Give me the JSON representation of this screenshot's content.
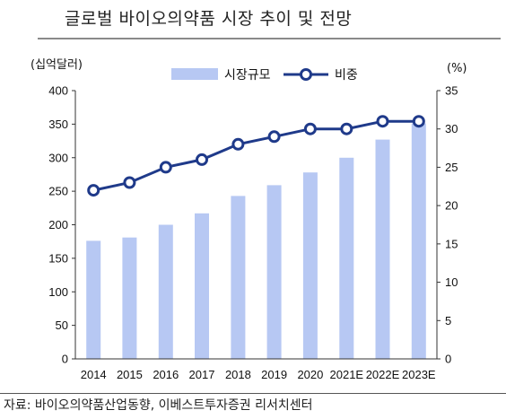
{
  "header": {
    "title": "글로벌 바이오의약품 시장 추이 및 전망"
  },
  "footer": {
    "source": "자료: 바이오의약품산업동향, 이베스트투자증권 리서치센터"
  },
  "colors": {
    "bar": "#b7c8f3",
    "line": "#1f3a8a",
    "marker_fill": "#ffffff"
  },
  "chart_data": {
    "type": "bar",
    "title": "글로벌 바이오의약품 시장 추이 및 전망",
    "categories": [
      "2014",
      "2015",
      "2016",
      "2017",
      "2018",
      "2019",
      "2020",
      "2021E",
      "2022E",
      "2023E"
    ],
    "series": [
      {
        "name": "시장규모",
        "type": "bar",
        "axis": "left",
        "values": [
          176,
          181,
          200,
          217,
          243,
          259,
          278,
          300,
          327,
          351
        ]
      },
      {
        "name": "비중",
        "type": "line",
        "axis": "right",
        "values": [
          22,
          23,
          25,
          26,
          28,
          29,
          30,
          30,
          31,
          31
        ]
      }
    ],
    "y_left": {
      "label": "(십억달러)",
      "ylim": [
        0,
        400
      ],
      "ticks": [
        0,
        50,
        100,
        150,
        200,
        250,
        300,
        350,
        400
      ]
    },
    "y_right": {
      "label": "(%)",
      "ylim": [
        0,
        35
      ],
      "ticks": [
        0,
        5,
        10,
        15,
        20,
        25,
        30,
        35
      ]
    },
    "grid": false,
    "legend": "top-center"
  }
}
